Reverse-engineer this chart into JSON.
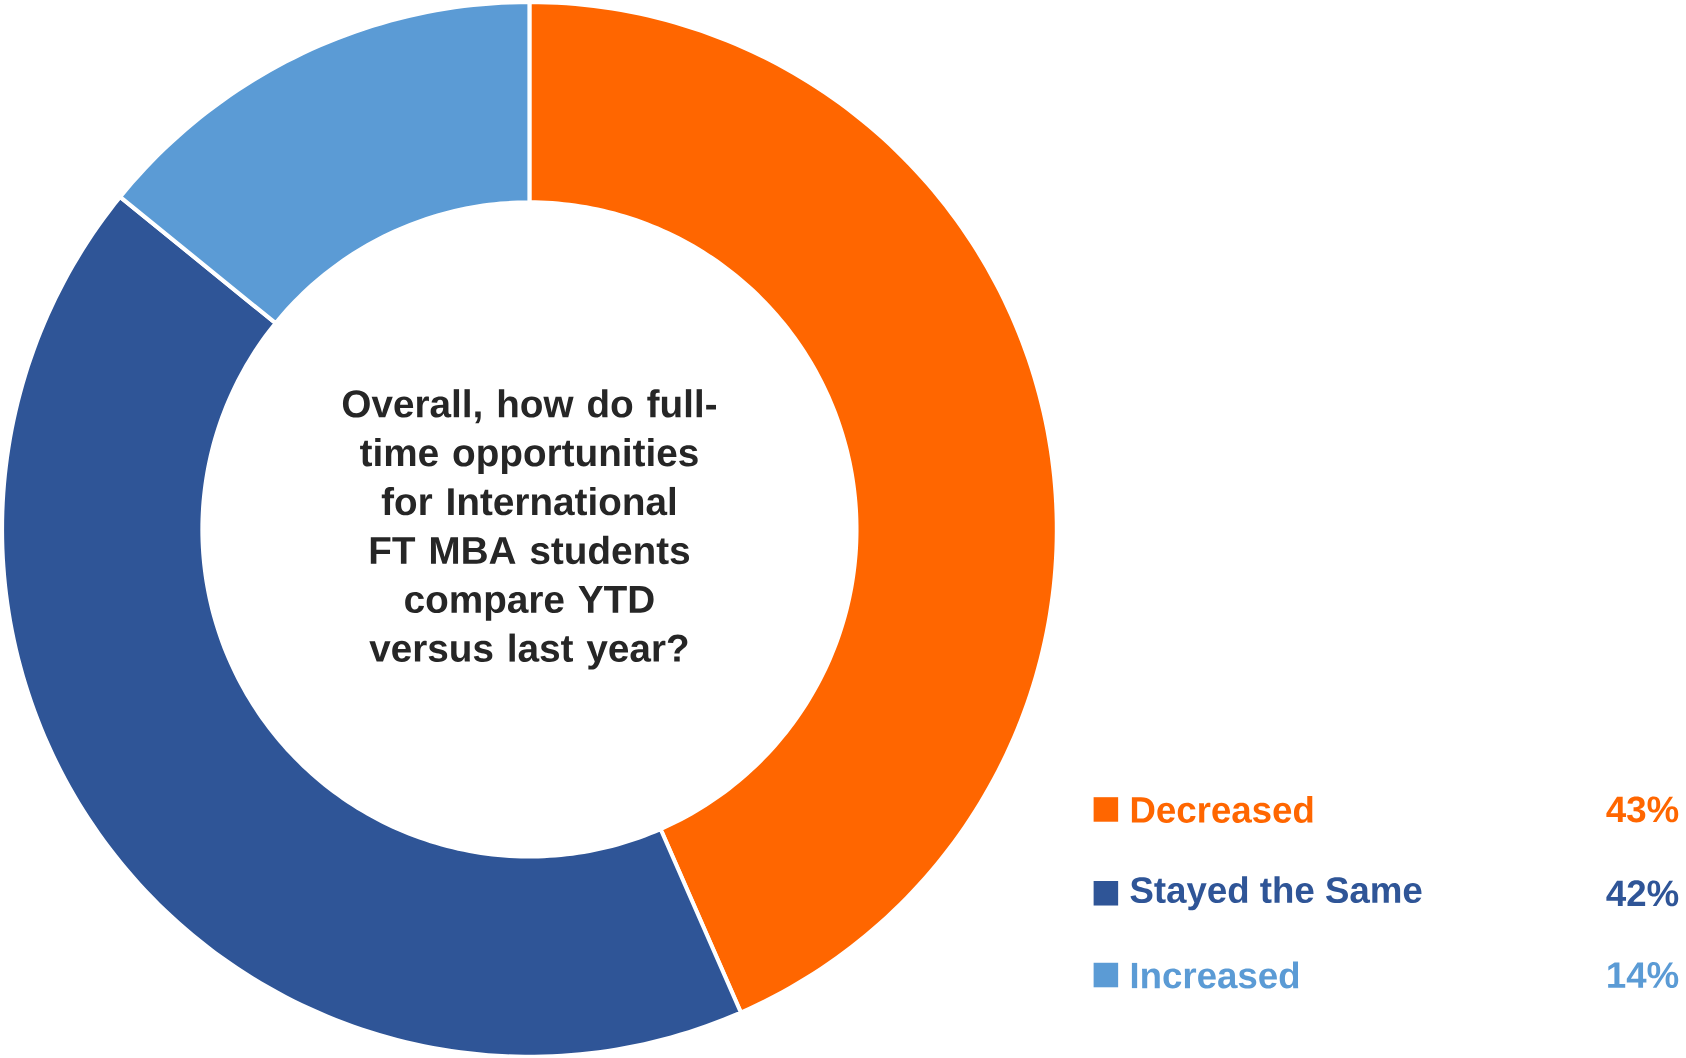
{
  "chart_data": {
    "type": "donut",
    "title": "Overall, how do full-time opportunities for International FT MBA students compare YTD versus last year?",
    "categories": [
      "Decreased",
      "Stayed the Same",
      "Increased"
    ],
    "values": [
      43,
      42,
      14
    ],
    "value_labels": [
      "43%",
      "42%",
      "14%"
    ],
    "colors": [
      "#ff6600",
      "#2f5597",
      "#5b9bd5"
    ],
    "legend": "bottom right"
  }
}
